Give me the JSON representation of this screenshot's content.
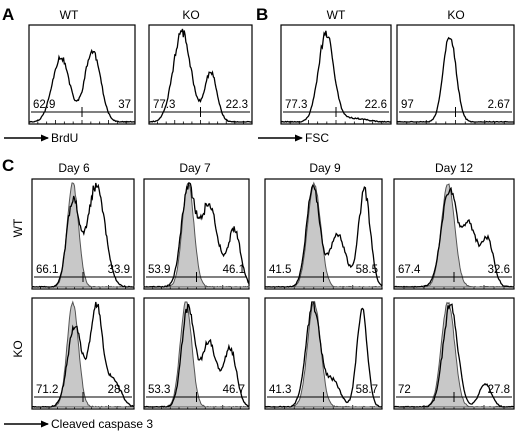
{
  "chart_data": [
    {
      "panel": "A",
      "type": "histogram",
      "axis_label": "BrdU",
      "plots": [
        {
          "title": "WT",
          "gate_values": [
            "62.9",
            "37"
          ],
          "peak_positions": [
            0.3,
            0.6
          ],
          "peak_heights": [
            0.7,
            0.76
          ]
        },
        {
          "title": "KO",
          "gate_values": [
            "77.3",
            "22.3"
          ],
          "peak_positions": [
            0.32,
            0.6
          ],
          "peak_heights": [
            0.97,
            0.53
          ]
        }
      ]
    },
    {
      "panel": "B",
      "type": "histogram",
      "axis_label": "FSC",
      "plots": [
        {
          "title": "WT",
          "gate_values": [
            "77.3",
            "22.6"
          ],
          "peak_positions": [
            0.41
          ],
          "peak_heights": [
            0.94
          ]
        },
        {
          "title": "KO",
          "gate_values": [
            "97",
            "2.67"
          ],
          "peak_positions": [
            0.45
          ],
          "peak_heights": [
            0.93
          ]
        }
      ]
    },
    {
      "panel": "C",
      "type": "histogram",
      "axis_label": "Cleaved caspase 3",
      "row_labels": [
        "WT",
        "KO"
      ],
      "column_titles": [
        "Day 6",
        "Day 7",
        "Day 9",
        "Day 12"
      ],
      "control_series": "filled gray",
      "plots": [
        {
          "row": "WT",
          "title": "Day 6",
          "gate_values": [
            "66.1",
            "33.9"
          ]
        },
        {
          "row": "WT",
          "title": "Day 7",
          "gate_values": [
            "53.9",
            "46.1"
          ]
        },
        {
          "row": "WT",
          "title": "Day 9",
          "gate_values": [
            "41.5",
            "58.5"
          ]
        },
        {
          "row": "WT",
          "title": "Day 12",
          "gate_values": [
            "67.4",
            "32.6"
          ]
        },
        {
          "row": "KO",
          "title": "Day 6",
          "gate_values": [
            "71.2",
            "28.8"
          ]
        },
        {
          "row": "KO",
          "title": "Day 7",
          "gate_values": [
            "53.3",
            "46.7"
          ]
        },
        {
          "row": "KO",
          "title": "Day 9",
          "gate_values": [
            "41.3",
            "58.7"
          ]
        },
        {
          "row": "KO",
          "title": "Day 12",
          "gate_values": [
            "72",
            "27.8"
          ]
        }
      ]
    }
  ]
}
